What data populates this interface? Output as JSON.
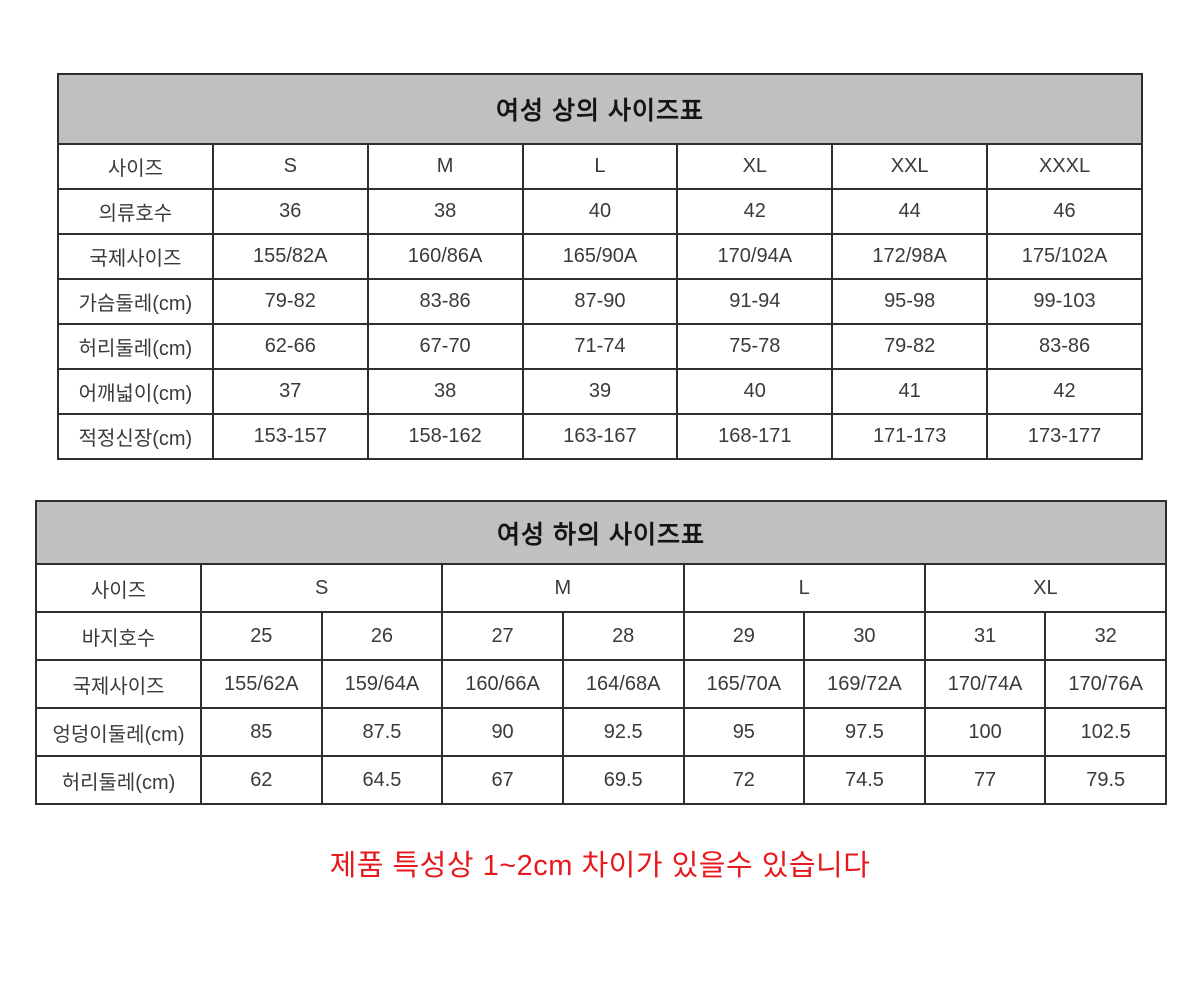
{
  "colors": {
    "table_header_bg": "#c0c0c0",
    "table_border": "#2f2f2f",
    "cell_text": "#3a3a3a",
    "footnote_red": "#e8191d",
    "page_bg": "#ffffff"
  },
  "top_table": {
    "title": "여성 상의 사이즈표",
    "rows": [
      {
        "label": "사이즈",
        "values": [
          "S",
          "M",
          "L",
          "XL",
          "XXL",
          "XXXL"
        ]
      },
      {
        "label": "의류호수",
        "values": [
          "36",
          "38",
          "40",
          "42",
          "44",
          "46"
        ]
      },
      {
        "label": "국제사이즈",
        "values": [
          "155/82A",
          "160/86A",
          "165/90A",
          "170/94A",
          "172/98A",
          "175/102A"
        ]
      },
      {
        "label": "가슴둘레(cm)",
        "values": [
          "79-82",
          "83-86",
          "87-90",
          "91-94",
          "95-98",
          "99-103"
        ]
      },
      {
        "label": "허리둘레(cm)",
        "values": [
          "62-66",
          "67-70",
          "71-74",
          "75-78",
          "79-82",
          "83-86"
        ]
      },
      {
        "label": "어깨넓이(cm)",
        "values": [
          "37",
          "38",
          "39",
          "40",
          "41",
          "42"
        ]
      },
      {
        "label": "적정신장(cm)",
        "values": [
          "153-157",
          "158-162",
          "163-167",
          "168-171",
          "171-173",
          "173-177"
        ]
      }
    ]
  },
  "bottom_table": {
    "title": "여성 하의 사이즈표",
    "size_row": {
      "label": "사이즈",
      "groups": [
        "S",
        "M",
        "L",
        "XL"
      ]
    },
    "rows": [
      {
        "label": "바지호수",
        "values": [
          "25",
          "26",
          "27",
          "28",
          "29",
          "30",
          "31",
          "32"
        ]
      },
      {
        "label": "국제사이즈",
        "values": [
          "155/62A",
          "159/64A",
          "160/66A",
          "164/68A",
          "165/70A",
          "169/72A",
          "170/74A",
          "170/76A"
        ]
      },
      {
        "label": "엉덩이둘레(cm)",
        "values": [
          "85",
          "87.5",
          "90",
          "92.5",
          "95",
          "97.5",
          "100",
          "102.5"
        ]
      },
      {
        "label": "허리둘레(cm)",
        "values": [
          "62",
          "64.5",
          "67",
          "69.5",
          "72",
          "74.5",
          "77",
          "79.5"
        ]
      }
    ]
  },
  "footnote": {
    "text": "제품 특성상 1~2cm 차이가 있을수 있습니다"
  }
}
